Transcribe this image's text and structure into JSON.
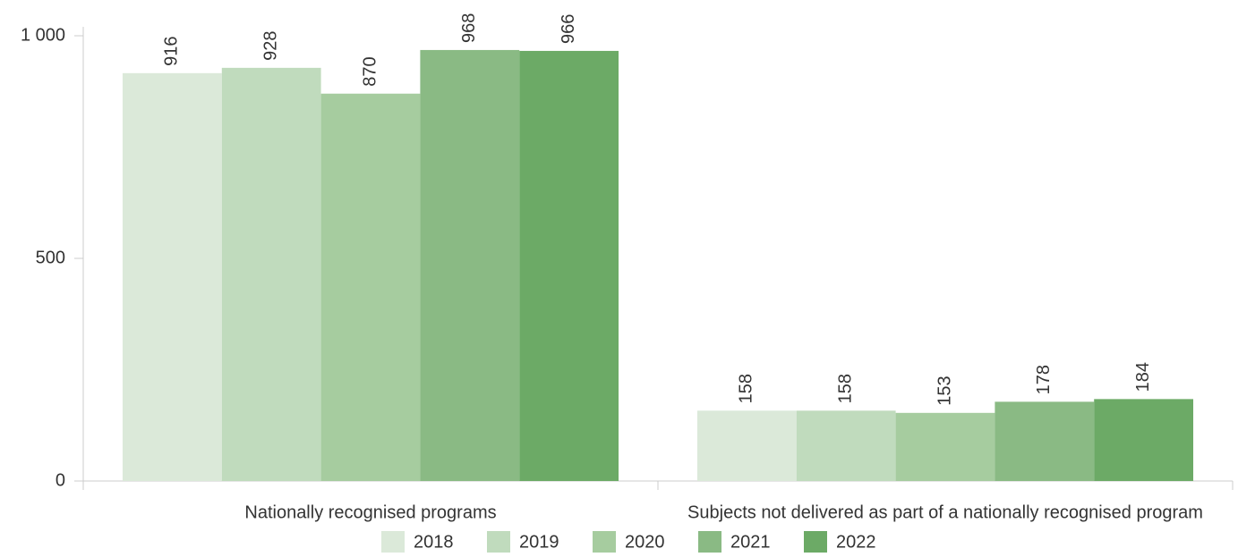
{
  "chart_data": {
    "type": "bar",
    "categories": [
      "Nationally recognised programs",
      "Subjects not delivered as part of a nationally recognised program"
    ],
    "series": [
      {
        "name": "2018",
        "color": "#dbe9d9",
        "values": [
          916,
          158
        ]
      },
      {
        "name": "2019",
        "color": "#c0dbbd",
        "values": [
          928,
          158
        ]
      },
      {
        "name": "2020",
        "color": "#a6cc9f",
        "values": [
          870,
          153
        ]
      },
      {
        "name": "2021",
        "color": "#8aba84",
        "values": [
          968,
          178
        ]
      },
      {
        "name": "2022",
        "color": "#6caa66",
        "values": [
          966,
          184
        ]
      }
    ],
    "ylim": [
      0,
      1000
    ],
    "yticks": [
      0,
      500,
      {
        "value": 1000,
        "label": "1 000"
      }
    ],
    "grid": false,
    "legend": "bottom"
  }
}
